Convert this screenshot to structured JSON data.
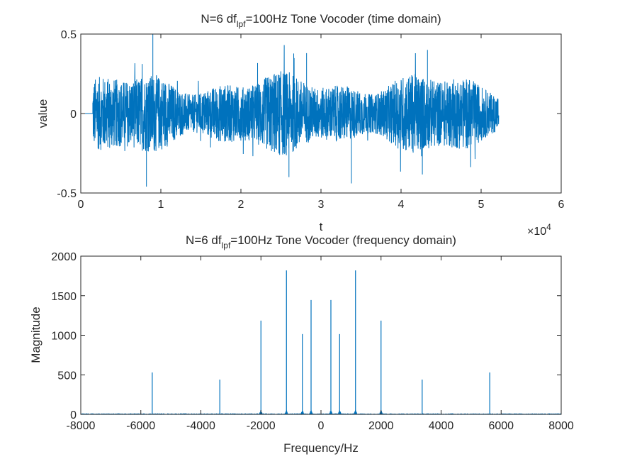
{
  "chart_data": [
    {
      "type": "line",
      "title": {
        "main": "N=6 df",
        "sub": "lpf",
        "rest": "=100Hz Tone Vocoder (time domain)"
      },
      "xlabel": "t",
      "ylabel": "value",
      "xlim": [
        0,
        60000
      ],
      "ylim": [
        -0.5,
        0.5
      ],
      "x_ticks": [
        0,
        10000,
        20000,
        30000,
        40000,
        50000,
        60000
      ],
      "x_tick_labels": [
        "0",
        "1",
        "2",
        "3",
        "4",
        "5",
        "6"
      ],
      "x_exponent": {
        "base": "×10",
        "power": "4"
      },
      "y_ticks": [
        -0.5,
        0,
        0.5
      ],
      "y_tick_labels": [
        "-0.5",
        "0",
        "0.5"
      ],
      "signal_start": 1500,
      "signal_end": 52200,
      "signal_peak_max": 0.5,
      "signal_peak_min": -0.46,
      "color": "#0072BD",
      "grid": false
    },
    {
      "type": "line",
      "title": {
        "main": "N=6 df",
        "sub": "lpf",
        "rest": "=100Hz Tone Vocoder (frequency domain)"
      },
      "xlabel": "Frequency/Hz",
      "ylabel": "Magnitude",
      "xlim": [
        -8000,
        8000
      ],
      "ylim": [
        0,
        2000
      ],
      "x_ticks": [
        -8000,
        -6000,
        -4000,
        -2000,
        0,
        2000,
        4000,
        6000,
        8000
      ],
      "x_tick_labels": [
        "-8000",
        "-6000",
        "-4000",
        "-2000",
        "0",
        "2000",
        "4000",
        "6000",
        "8000"
      ],
      "y_ticks": [
        0,
        500,
        1000,
        1500,
        2000
      ],
      "y_tick_labels": [
        "0",
        "500",
        "1000",
        "1500",
        "2000"
      ],
      "peaks": [
        {
          "x": -5620,
          "y": 530
        },
        {
          "x": -3370,
          "y": 440
        },
        {
          "x": -2000,
          "y": 1185
        },
        {
          "x": -1150,
          "y": 1820
        },
        {
          "x": -620,
          "y": 1015
        },
        {
          "x": -330,
          "y": 1445
        },
        {
          "x": 330,
          "y": 1445
        },
        {
          "x": 620,
          "y": 1015
        },
        {
          "x": 1150,
          "y": 1820
        },
        {
          "x": 2000,
          "y": 1185
        },
        {
          "x": 3370,
          "y": 440
        },
        {
          "x": 5620,
          "y": 530
        }
      ],
      "color": "#0072BD",
      "grid": false
    }
  ]
}
